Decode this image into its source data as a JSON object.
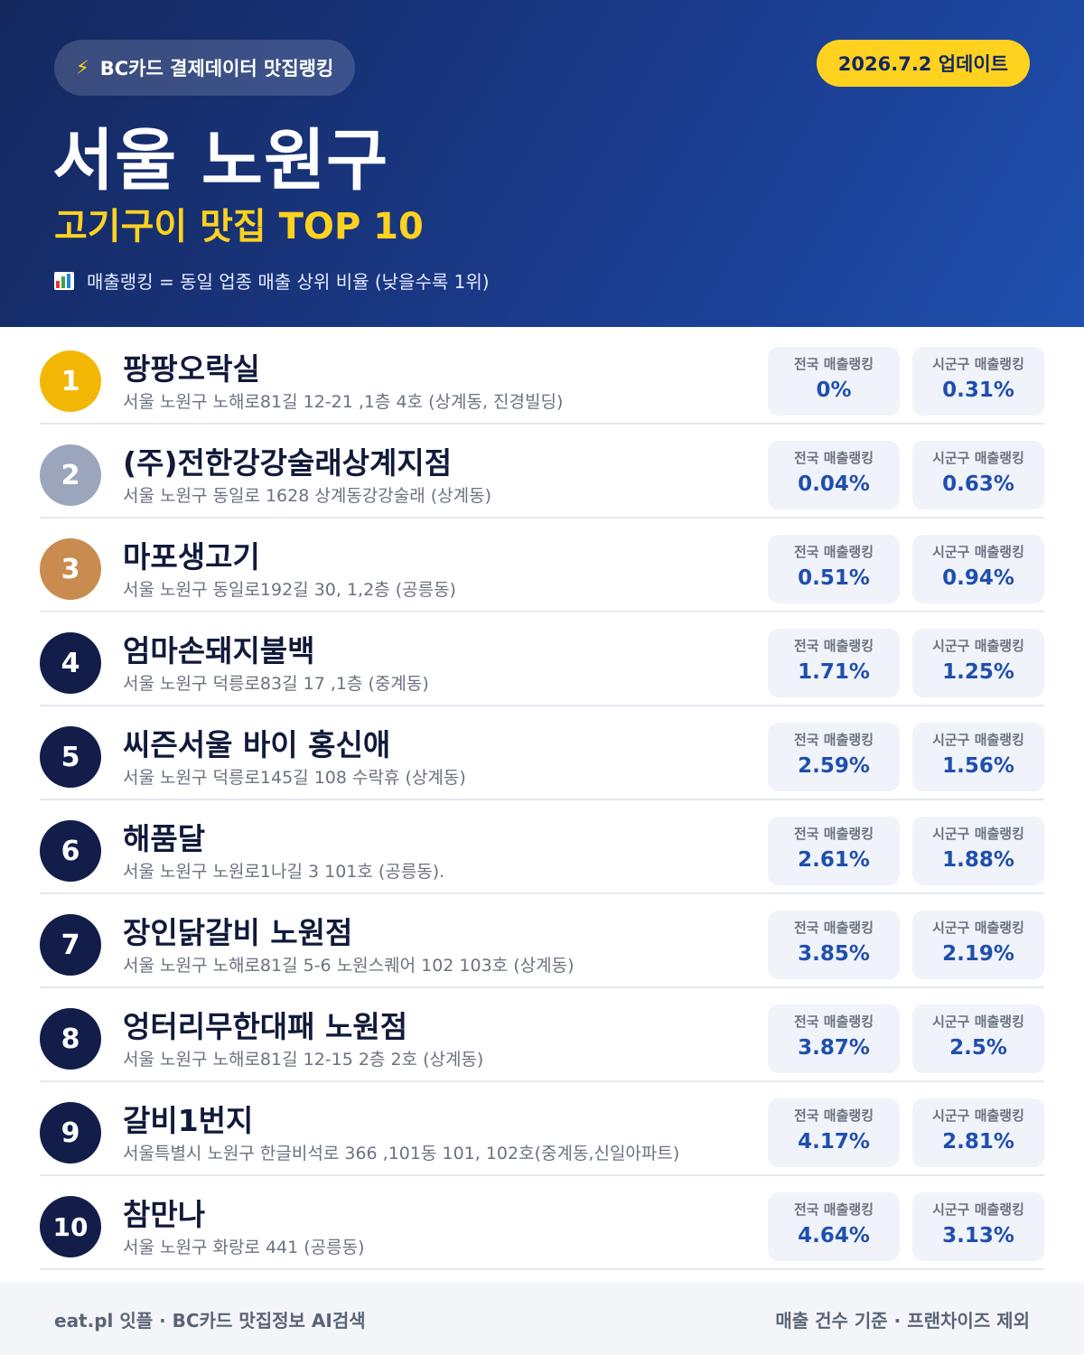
{
  "header": {
    "pill_label": "BC카드 결제데이터 맛집랭킹",
    "update_label": "2026.7.2 업데이트",
    "title": "서울 노원구",
    "subtitle": "고기구이 맛집 TOP 10",
    "note": "매출랭킹 = 동일 업종 매출 상위 비율 (낮을수록 1위)"
  },
  "stat_labels": {
    "national": "전국 매출랭킹",
    "local": "시군구 매출랭킹"
  },
  "rank_colors": {
    "gold": "#f2b705",
    "silver": "#9ba6bd",
    "bronze": "#c98b4f",
    "default": "#121d4a"
  },
  "restaurants": [
    {
      "rank": "1",
      "name": "팡팡오락실",
      "address": "서울 노원구 노해로81길 12-21 ,1층 4호 (상계동, 진경빌딩)",
      "national": "0%",
      "local": "0.31%"
    },
    {
      "rank": "2",
      "name": "(주)전한강강술래상계지점",
      "address": "서울 노원구 동일로 1628 상계동강강술래 (상계동)",
      "national": "0.04%",
      "local": "0.63%"
    },
    {
      "rank": "3",
      "name": "마포생고기",
      "address": "서울 노원구 동일로192길 30, 1,2층 (공릉동)",
      "national": "0.51%",
      "local": "0.94%"
    },
    {
      "rank": "4",
      "name": "엄마손돼지불백",
      "address": "서울 노원구 덕릉로83길 17 ,1층 (중계동)",
      "national": "1.71%",
      "local": "1.25%"
    },
    {
      "rank": "5",
      "name": "씨즌서울 바이 홍신애",
      "address": "서울 노원구 덕릉로145길 108 수락휴 (상계동)",
      "national": "2.59%",
      "local": "1.56%"
    },
    {
      "rank": "6",
      "name": "해품달",
      "address": "서울 노원구 노원로1나길 3 101호 (공릉동).",
      "national": "2.61%",
      "local": "1.88%"
    },
    {
      "rank": "7",
      "name": "장인닭갈비 노원점",
      "address": "서울 노원구 노해로81길 5-6 노원스퀘어 102 103호 (상계동)",
      "national": "3.85%",
      "local": "2.19%"
    },
    {
      "rank": "8",
      "name": "엉터리무한대패 노원점",
      "address": "서울 노원구 노해로81길 12-15 2층 2호 (상계동)",
      "national": "3.87%",
      "local": "2.5%"
    },
    {
      "rank": "9",
      "name": "갈비1번지",
      "address": "서울특별시 노원구 한글비석로 366 ,101동 101, 102호(중계동,신일아파트)",
      "national": "4.17%",
      "local": "2.81%"
    },
    {
      "rank": "10",
      "name": "참만나",
      "address": "서울 노원구 화랑로 441 (공릉동)",
      "national": "4.64%",
      "local": "3.13%"
    }
  ],
  "footer": {
    "left": "eat.pl 잇플 · BC카드 맛집정보 AI검색",
    "right": "매출 건수 기준 · 프랜차이즈 제외"
  }
}
